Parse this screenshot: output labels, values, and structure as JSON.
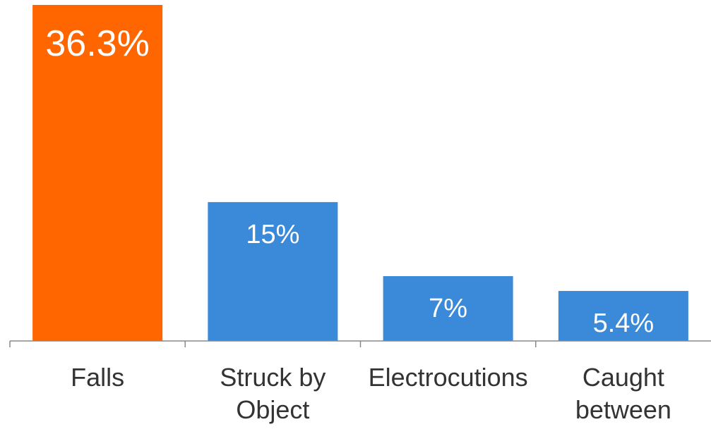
{
  "chart_data": {
    "type": "bar",
    "title": "",
    "xlabel": "",
    "ylabel": "",
    "categories": [
      [
        "Falls"
      ],
      [
        "Struck by",
        "Object"
      ],
      [
        "Electrocutions"
      ],
      [
        "Caught",
        "between"
      ]
    ],
    "values": [
      36.3,
      15,
      7,
      5.4
    ],
    "value_labels": [
      "36.3%",
      "15%",
      "7%",
      "5.4%"
    ],
    "ylim": [
      0,
      36.3
    ],
    "grid": false,
    "legend": "none",
    "colors": [
      "#FF6600",
      "#3A8AD9",
      "#3A8AD9",
      "#3A8AD9"
    ],
    "axis_color": "#888888"
  }
}
